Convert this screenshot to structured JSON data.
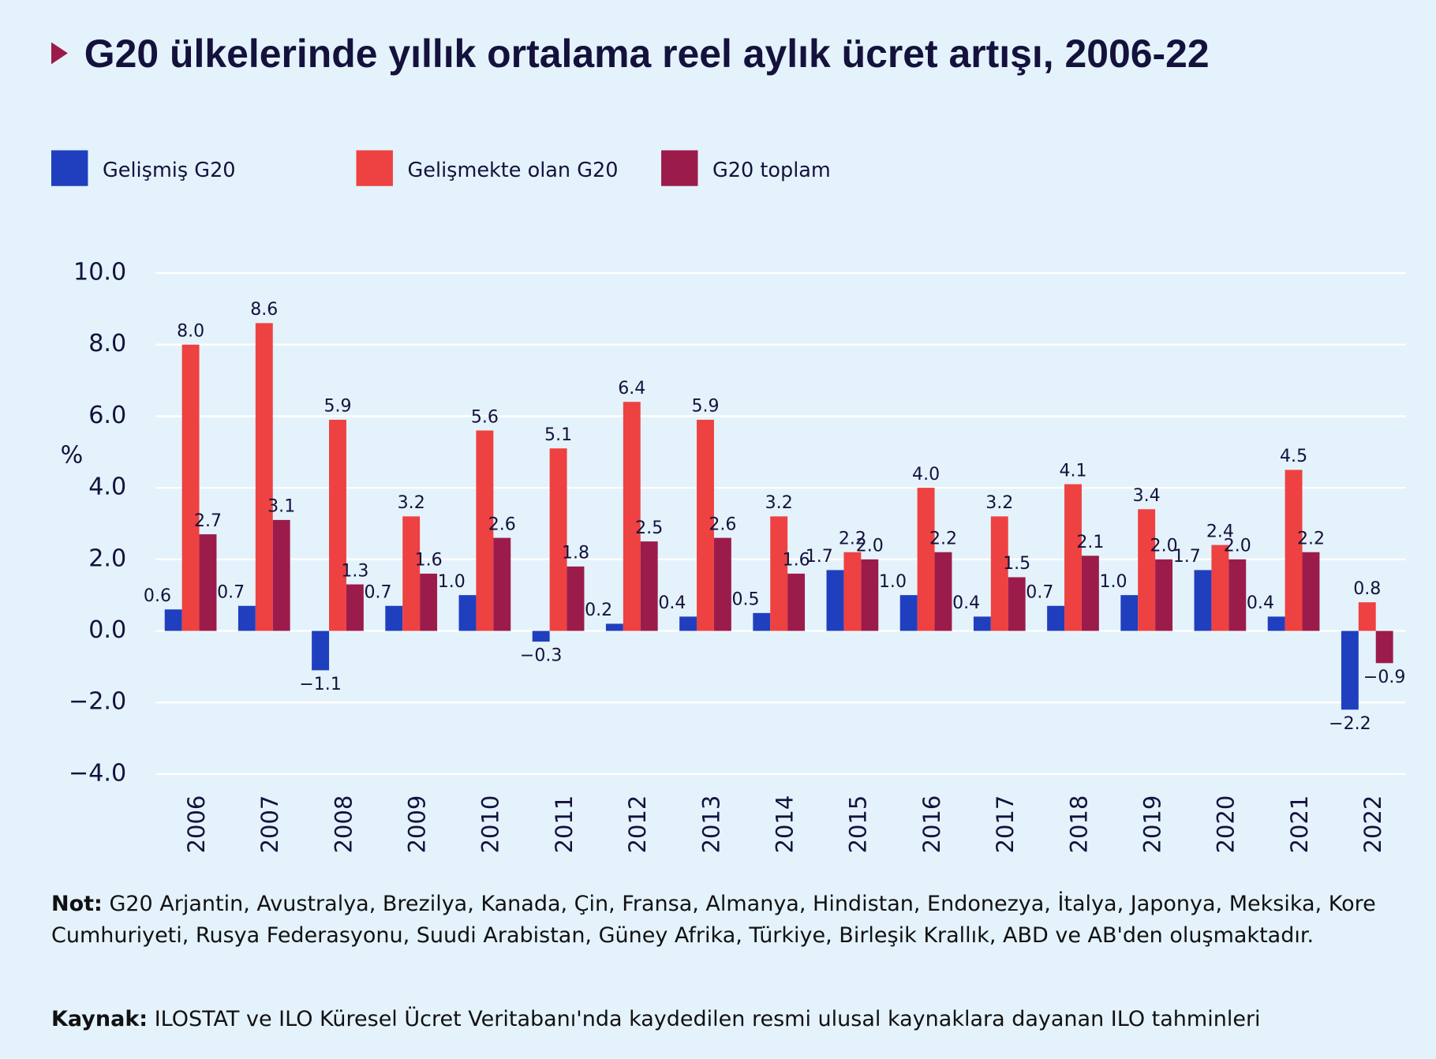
{
  "chart_data": {
    "type": "bar",
    "title": "G20 ülkelerinde yıllık ortalama reel aylık ücret artışı, 2006-22",
    "y_label": "%",
    "categories": [
      "2006",
      "2007",
      "2008",
      "2009",
      "2010",
      "2011",
      "2012",
      "2013",
      "2014",
      "2015",
      "2016",
      "2017",
      "2018",
      "2019",
      "2020",
      "2021",
      "2022"
    ],
    "series": [
      {
        "name": "Gelişmiş G20",
        "color": "#1f3fbf",
        "values": [
          0.6,
          0.7,
          -1.1,
          0.7,
          1.0,
          -0.3,
          0.2,
          0.4,
          0.5,
          1.7,
          1.0,
          0.4,
          0.7,
          1.0,
          1.7,
          0.4,
          -2.2
        ],
        "value_labels": [
          "0.6",
          "0.7",
          "−1.1",
          "0.7",
          "1.0",
          "−0.3",
          "0.2",
          "0.4",
          "0.5",
          "1.7",
          "1.0",
          "0.4",
          "0.7",
          "1.0",
          "1.7",
          "0.4",
          "−2.2"
        ]
      },
      {
        "name": "Gelişmekte olan G20",
        "color": "#ee4141",
        "values": [
          8.0,
          8.6,
          5.9,
          3.2,
          5.6,
          5.1,
          6.4,
          5.9,
          3.2,
          2.2,
          4.0,
          3.2,
          4.1,
          3.4,
          2.4,
          4.5,
          0.8
        ],
        "value_labels": [
          "8.0",
          "8.6",
          "5.9",
          "3.2",
          "5.6",
          "5.1",
          "6.4",
          "5.9",
          "3.2",
          "2.2",
          "4.0",
          "3.2",
          "4.1",
          "3.4",
          "2.4",
          "4.5",
          "0.8"
        ]
      },
      {
        "name": "G20 toplam",
        "color": "#9b1c4b",
        "values": [
          2.7,
          3.1,
          1.3,
          1.6,
          2.6,
          1.8,
          2.5,
          2.6,
          1.6,
          2.0,
          2.2,
          1.5,
          2.1,
          2.0,
          2.0,
          2.2,
          -0.9
        ],
        "value_labels": [
          "2.7",
          "3.1",
          "1.3",
          "1.6",
          "2.6",
          "1.8",
          "2.5",
          "2.6",
          "1.6",
          "2.0",
          "2.2",
          "1.5",
          "2.1",
          "2.0",
          "2.0",
          "2.2",
          "−0.9"
        ]
      }
    ],
    "ylim": [
      -4,
      10
    ],
    "yticks": [
      {
        "value": -4,
        "label": "−4.0"
      },
      {
        "value": -2,
        "label": "−2.0"
      },
      {
        "value": 0,
        "label": "0.0"
      },
      {
        "value": 2,
        "label": "2.0"
      },
      {
        "value": 4,
        "label": "4.0"
      },
      {
        "value": 6,
        "label": "6.0"
      },
      {
        "value": 8,
        "label": "8.0"
      },
      {
        "value": 10,
        "label": "10.0"
      }
    ],
    "grid": true,
    "legend": "top-left",
    "note": {
      "label": "Not:",
      "text": "G20 Arjantin, Avustralya, Brezilya, Kanada, Çin, Fransa, Almanya, Hindistan, Endonezya, İtalya, Japonya, Meksika, Kore Cumhuriyeti, Rusya Federasyonu, Suudi Arabistan, Güney Afrika, Türkiye, Birleşik Krallık, ABD ve AB'den oluşmaktadır."
    },
    "source": {
      "label": "Kaynak:",
      "text": "ILOSTAT ve ILO Küresel Ücret Veritabanı'nda kaydedilen resmi ulusal kaynaklara dayanan ILO tahminleri"
    }
  }
}
